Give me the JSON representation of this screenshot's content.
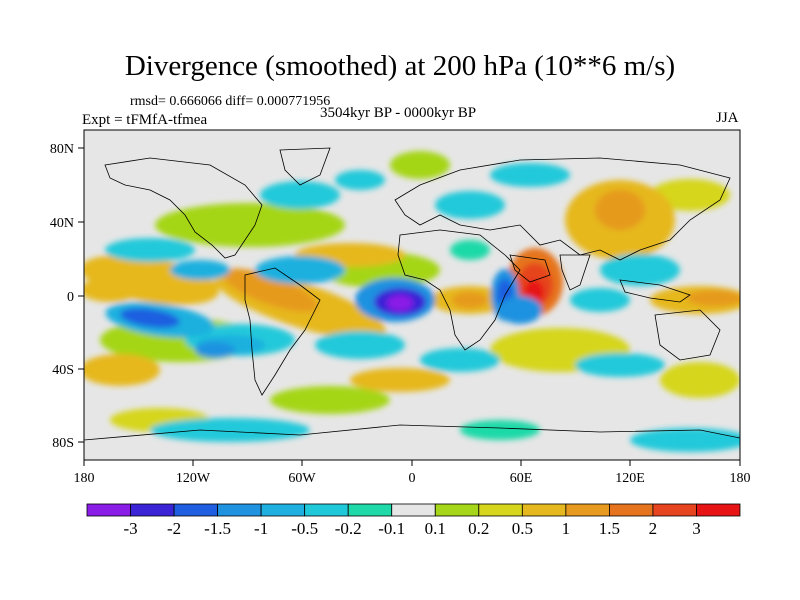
{
  "plot": {
    "title": "Divergence (smoothed) at 200 hPa (10**6 m/s)",
    "rmsd_text": "rmsd= 0.666066 diff= 0.000771956",
    "experiment": "Expt = tFMfA-tfmea",
    "period": "3504kyr BP - 0000kyr BP",
    "season": "JJA"
  },
  "axes": {
    "x_ticks": [
      "180",
      "120W",
      "60W",
      "0",
      "60E",
      "120E",
      "180"
    ],
    "y_ticks": [
      "80N",
      "40N",
      "0",
      "40S",
      "80S"
    ]
  },
  "colorbar": {
    "labels": [
      "-3",
      "-2",
      "-1.5",
      "-1",
      "-0.5",
      "-0.2",
      "-0.1",
      "0.1",
      "0.2",
      "0.5",
      "1",
      "1.5",
      "2",
      "3"
    ],
    "colors": [
      "#8a1ee6",
      "#3b24d6",
      "#1f5ee0",
      "#1f92e0",
      "#1fb0df",
      "#20c9da",
      "#1fd9a8",
      "#e6e6e6",
      "#a5d619",
      "#d6d61f",
      "#e6b81f",
      "#e69a1f",
      "#e6741f",
      "#e6451f",
      "#e61414"
    ]
  },
  "colors": {
    "land_ocean_background": "#e6e6e6",
    "coastline": "#000000"
  }
}
